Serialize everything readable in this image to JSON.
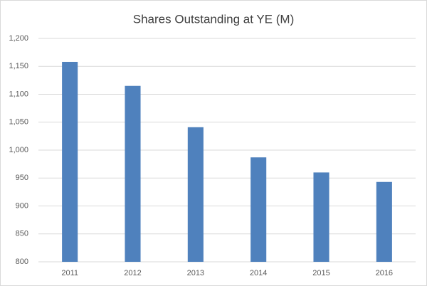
{
  "chart_data": {
    "type": "bar",
    "title": "Shares Outstanding at YE (M)",
    "categories": [
      "2011",
      "2012",
      "2013",
      "2014",
      "2015",
      "2016"
    ],
    "values": [
      1158,
      1115,
      1041,
      987,
      960,
      943
    ],
    "color": "#4f81bd",
    "ylim": [
      800,
      1200
    ],
    "yticks": [
      800,
      850,
      900,
      950,
      {
        "value": 1000,
        "label": "1,000"
      },
      {
        "value": 1050,
        "label": "1,050"
      },
      {
        "value": 1100,
        "label": "1,100"
      },
      {
        "value": 1150,
        "label": "1,150"
      },
      {
        "value": 1200,
        "label": "1,200"
      }
    ],
    "grid": true
  }
}
